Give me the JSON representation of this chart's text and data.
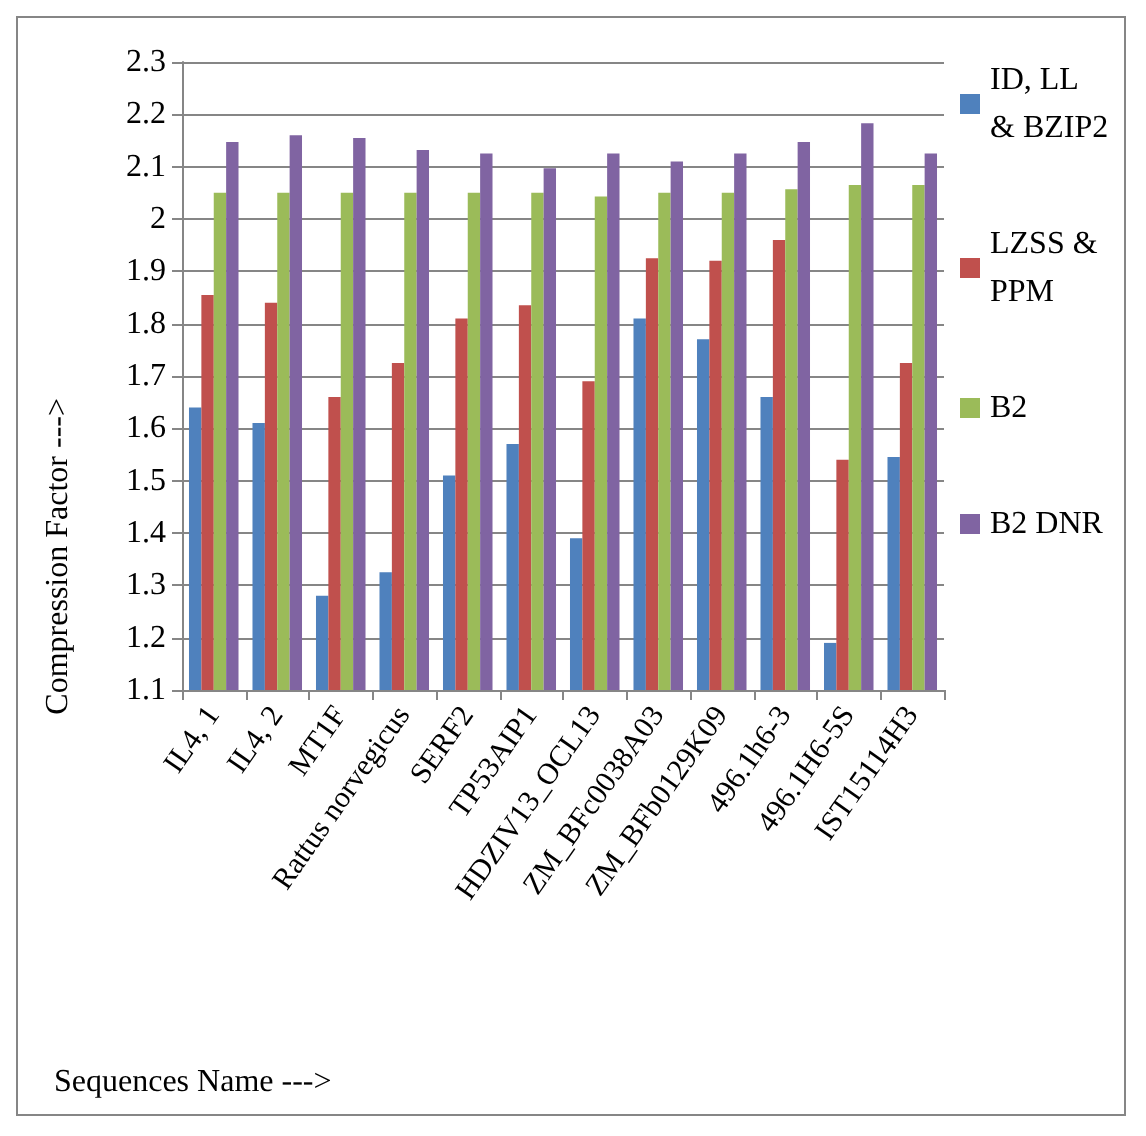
{
  "chart_data": {
    "type": "bar",
    "xlabel": "Sequences Name --->",
    "ylabel": "Compression Factor --->",
    "categories": [
      "IL4, 1",
      "IL4, 2",
      "MT1F",
      "Rattus norvegicus",
      "SERF2",
      "TP53AIP1",
      "HDZIV13_OCL13",
      "ZM_BFc0038A03",
      "ZM_BFb0129K09",
      "496.1h6-3",
      "496.1H6-5S",
      "IST15114H3"
    ],
    "series": [
      {
        "name": "ID, LL & BZIP2",
        "color": "#4f81bd",
        "values": [
          1.64,
          1.61,
          1.28,
          1.325,
          1.51,
          1.57,
          1.39,
          1.81,
          1.77,
          1.66,
          1.19,
          1.545
        ]
      },
      {
        "name": "LZSS & PPM",
        "color": "#c0504d",
        "values": [
          1.855,
          1.84,
          1.66,
          1.725,
          1.81,
          1.835,
          1.69,
          1.925,
          1.92,
          1.96,
          1.54,
          1.725
        ]
      },
      {
        "name": "B2",
        "color": "#9bbb59",
        "values": [
          2.05,
          2.05,
          2.05,
          2.05,
          2.05,
          2.05,
          2.043,
          2.05,
          2.05,
          2.057,
          2.065,
          2.065
        ]
      },
      {
        "name": "B2 DNR",
        "color": "#8064a2",
        "values": [
          2.147,
          2.16,
          2.155,
          2.132,
          2.125,
          2.097,
          2.125,
          2.11,
          2.125,
          2.147,
          2.183,
          2.125
        ]
      }
    ],
    "ylim": [
      1.1,
      2.3
    ],
    "yticks": [
      1.1,
      1.2,
      1.3,
      1.4,
      1.5,
      1.6,
      1.7,
      1.8,
      1.9,
      2,
      2.1,
      2.2,
      2.3
    ],
    "grid": "y",
    "legend": "right"
  }
}
